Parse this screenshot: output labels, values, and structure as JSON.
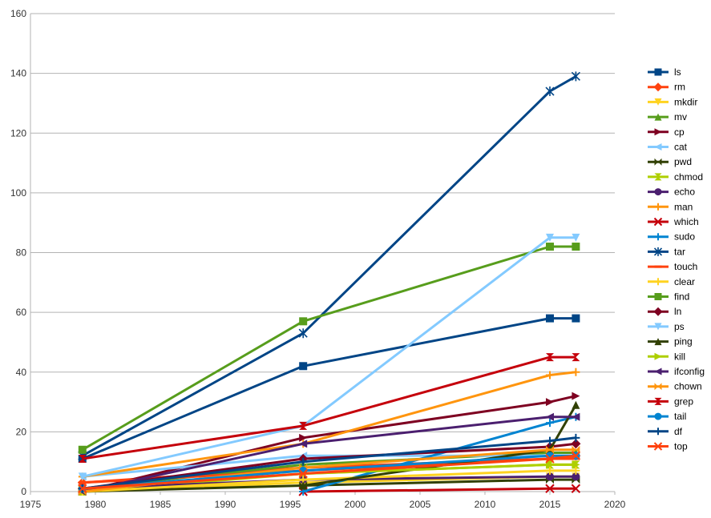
{
  "chart_data": {
    "type": "line",
    "title": "",
    "xlabel": "",
    "ylabel": "",
    "xlim": [
      1975,
      2020
    ],
    "ylim": [
      0,
      160
    ],
    "xticks": [
      1975,
      1980,
      1985,
      1990,
      1995,
      2000,
      2005,
      2010,
      2015,
      2020
    ],
    "yticks": [
      0,
      20,
      40,
      60,
      80,
      100,
      120,
      140,
      160
    ],
    "grid": "horizontal",
    "legend_position": "right",
    "series": [
      {
        "name": "ls",
        "color": "#004586",
        "marker": "square",
        "x": [
          1979,
          1996,
          2015,
          2017
        ],
        "y": [
          11,
          42,
          58,
          58
        ]
      },
      {
        "name": "rm",
        "color": "#ff420e",
        "marker": "diamond",
        "x": [
          1979,
          1996,
          2015,
          2017
        ],
        "y": [
          3,
          8,
          11,
          12
        ]
      },
      {
        "name": "mkdir",
        "color": "#ffd320",
        "marker": "triangle-down",
        "x": [
          1979,
          1996,
          2015,
          2017
        ],
        "y": [
          0,
          3,
          5,
          5
        ]
      },
      {
        "name": "mv",
        "color": "#579d1c",
        "marker": "triangle-up",
        "x": [
          1979,
          1996,
          2015,
          2017
        ],
        "y": [
          1,
          9,
          13,
          13
        ]
      },
      {
        "name": "cp",
        "color": "#7e0021",
        "marker": "triangle-right",
        "x": [
          1979,
          1996,
          2015,
          2017
        ],
        "y": [
          0,
          18,
          30,
          32
        ]
      },
      {
        "name": "cat",
        "color": "#83caff",
        "marker": "triangle-left",
        "x": [
          1979,
          1996,
          2015,
          2017
        ],
        "y": [
          5,
          12,
          12,
          12
        ]
      },
      {
        "name": "pwd",
        "color": "#314004",
        "marker": "bowtie",
        "x": [
          1979,
          1996,
          2015,
          2017
        ],
        "y": [
          0,
          2,
          4,
          4
        ]
      },
      {
        "name": "chmod",
        "color": "#aecf00",
        "marker": "hourglass",
        "x": [
          1979,
          1996,
          2015,
          2017
        ],
        "y": [
          0,
          6,
          9,
          9
        ]
      },
      {
        "name": "echo",
        "color": "#4b1f6f",
        "marker": "circle",
        "x": [
          1979,
          1996,
          2015,
          2017
        ],
        "y": [
          1,
          4,
          5,
          5
        ]
      },
      {
        "name": "man",
        "color": "#ff950e",
        "marker": "plus",
        "x": [
          1979,
          1996,
          2015,
          2017
        ],
        "y": [
          5,
          16,
          39,
          40
        ]
      },
      {
        "name": "which",
        "color": "#c5000b",
        "marker": "x",
        "x": [
          1996,
          2015,
          2017
        ],
        "y": [
          0,
          1,
          1
        ]
      },
      {
        "name": "sudo",
        "color": "#0084d1",
        "marker": "plus",
        "x": [
          1996,
          2015,
          2017
        ],
        "y": [
          0,
          23,
          25
        ]
      },
      {
        "name": "tar",
        "color": "#004586",
        "marker": "asterisk",
        "x": [
          1979,
          1996,
          2015,
          2017
        ],
        "y": [
          12,
          53,
          134,
          139
        ]
      },
      {
        "name": "touch",
        "color": "#ff420e",
        "marker": "dash",
        "x": [
          1979,
          1996,
          2015,
          2017
        ],
        "y": [
          3,
          7,
          11,
          11
        ]
      },
      {
        "name": "clear",
        "color": "#ffd320",
        "marker": "plus",
        "x": [
          1979,
          1996,
          2015,
          2017
        ],
        "y": [
          0,
          4,
          7,
          7
        ]
      },
      {
        "name": "find",
        "color": "#579d1c",
        "marker": "square",
        "x": [
          1979,
          1996,
          2015,
          2017
        ],
        "y": [
          14,
          57,
          82,
          82
        ]
      },
      {
        "name": "ln",
        "color": "#7e0021",
        "marker": "diamond",
        "x": [
          1979,
          1996,
          2015,
          2017
        ],
        "y": [
          1,
          11,
          15,
          16
        ]
      },
      {
        "name": "ps",
        "color": "#83caff",
        "marker": "triangle-down",
        "x": [
          1979,
          1996,
          2015,
          2017
        ],
        "y": [
          5,
          22,
          85,
          85
        ]
      },
      {
        "name": "ping",
        "color": "#314004",
        "marker": "triangle-up",
        "x": [
          1996,
          2015,
          2017
        ],
        "y": [
          2,
          14,
          29
        ]
      },
      {
        "name": "kill",
        "color": "#aecf00",
        "marker": "triangle-right",
        "x": [
          1979,
          1996,
          2015,
          2017
        ],
        "y": [
          1,
          6,
          9,
          9
        ]
      },
      {
        "name": "ifconfig",
        "color": "#4b1f6f",
        "marker": "triangle-left",
        "x": [
          1979,
          1996,
          2015,
          2017
        ],
        "y": [
          0,
          16,
          25,
          25
        ]
      },
      {
        "name": "chown",
        "color": "#ff950e",
        "marker": "bowtie",
        "x": [
          1979,
          1996,
          2015,
          2017
        ],
        "y": [
          0,
          8,
          14,
          14
        ]
      },
      {
        "name": "grep",
        "color": "#c5000b",
        "marker": "hourglass",
        "x": [
          1979,
          1996,
          2015,
          2017
        ],
        "y": [
          11,
          22,
          45,
          45
        ]
      },
      {
        "name": "tail",
        "color": "#0084d1",
        "marker": "circle",
        "x": [
          1979,
          1996,
          2015,
          2017
        ],
        "y": [
          1,
          7,
          12,
          12
        ]
      },
      {
        "name": "df",
        "color": "#004586",
        "marker": "plus",
        "x": [
          1979,
          1996,
          2015,
          2017
        ],
        "y": [
          1,
          10,
          17,
          18
        ]
      },
      {
        "name": "top",
        "color": "#ff420e",
        "marker": "x",
        "x": [
          1979,
          1996,
          2015,
          2017
        ],
        "y": [
          1,
          6,
          11,
          12
        ]
      }
    ]
  }
}
